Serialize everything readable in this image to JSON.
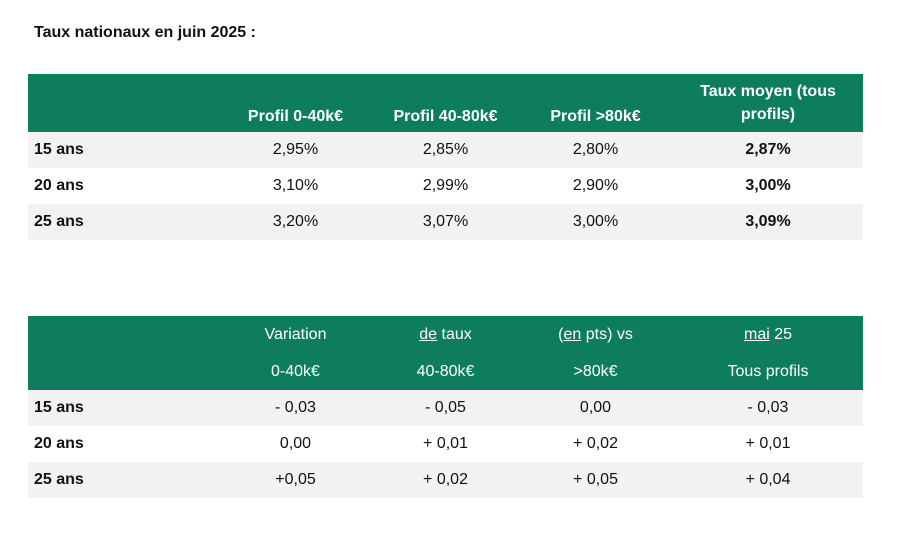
{
  "title": "Taux nationaux en juin 2025 :",
  "table1": {
    "headers": [
      "",
      "Profil 0-40k€",
      "Profil 40-80k€",
      "Profil >80k€",
      "Taux moyen (tous profils)"
    ],
    "rows": [
      {
        "label": "15 ans",
        "values": [
          "2,95%",
          "2,85%",
          "2,80%",
          "2,87%"
        ]
      },
      {
        "label": "20 ans",
        "values": [
          "3,10%",
          "2,99%",
          "2,90%",
          "3,00%"
        ]
      },
      {
        "label": "25 ans",
        "values": [
          "3,20%",
          "3,07%",
          "3,00%",
          "3,09%"
        ]
      }
    ]
  },
  "table2": {
    "header_row1": {
      "c1": "Variation",
      "c2_u": "de",
      "c2_rest": " taux",
      "c3_open": "(",
      "c3_u": "en",
      "c3_rest": " pts) vs",
      "c4_u": "mai",
      "c4_rest": " 25"
    },
    "header_row2": [
      "",
      "0-40k€",
      "40-80k€",
      ">80k€",
      "Tous profils"
    ],
    "rows": [
      {
        "label": "15 ans",
        "values": [
          "- 0,03",
          "- 0,05",
          "0,00",
          "- 0,03"
        ]
      },
      {
        "label": "20 ans",
        "values": [
          "0,00",
          "+ 0,01",
          "+ 0,02",
          "+ 0,01"
        ]
      },
      {
        "label": "25 ans",
        "values": [
          "+0,05",
          "+ 0,02",
          "+ 0,05",
          "+ 0,04"
        ]
      }
    ]
  },
  "colors": {
    "header_bg": "#0e7d5e",
    "header_text": "#ffffff",
    "row_shade": "#f2f2f2"
  }
}
